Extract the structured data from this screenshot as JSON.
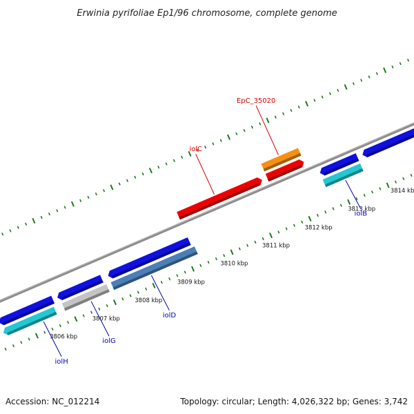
{
  "title": "Erwinia pyrifoliae Ep1/96 chromosome, complete genome",
  "footer": {
    "accession": "Accession: NC_012214",
    "topology": "Topology: circular; Length: 4,026,322 bp; Genes: 3,742"
  },
  "colors": {
    "backbone": "#8c8c8c",
    "tick": "#1a7a1a",
    "label_above": "#dd0000",
    "label_below": "#0000aa"
  },
  "scale": {
    "unit": "kbp",
    "labels": [
      "3806 kbp",
      "3807 kbp",
      "3808 kbp",
      "3809 kbp",
      "3810 kbp",
      "3811 kbp",
      "3812 kbp",
      "3813 kbp",
      "3814 kbp"
    ]
  },
  "genes": [
    {
      "id": "g-left-a",
      "label": "",
      "color": "#1010e0",
      "lane": "inner-below",
      "dir": "rev"
    },
    {
      "id": "g-iolH",
      "label": "iolH",
      "color": "#22c8d2",
      "lane": "outer-below",
      "dir": "rev"
    },
    {
      "id": "g-b",
      "label": "",
      "color": "#1010e0",
      "lane": "inner-below",
      "dir": "rev"
    },
    {
      "id": "g-iolG",
      "label": "iolG",
      "color": "#c4c4c4",
      "lane": "outer-below",
      "dir": "none"
    },
    {
      "id": "g-c",
      "label": "",
      "color": "#1010e0",
      "lane": "inner-below",
      "dir": "rev"
    },
    {
      "id": "g-iolD",
      "label": "iolD",
      "color": "#4a7fb8",
      "lane": "outer-below",
      "dir": "none"
    },
    {
      "id": "g-iolC",
      "label": "iolC",
      "color": "#ee0000",
      "lane": "inner-above",
      "dir": "fwd"
    },
    {
      "id": "g-red2",
      "label": "",
      "color": "#ee0000",
      "lane": "inner-above",
      "dir": "fwd"
    },
    {
      "id": "g-EpC",
      "label": "EpC_35020",
      "color": "#f7900f",
      "lane": "outer-above",
      "dir": "none"
    },
    {
      "id": "g-d",
      "label": "",
      "color": "#1010e0",
      "lane": "inner-below",
      "dir": "rev"
    },
    {
      "id": "g-iolB",
      "label": "iolB",
      "color": "#22c8d2",
      "lane": "outer-below",
      "dir": "none"
    },
    {
      "id": "g-e",
      "label": "",
      "color": "#1010e0",
      "lane": "inner-below",
      "dir": "rev"
    }
  ]
}
